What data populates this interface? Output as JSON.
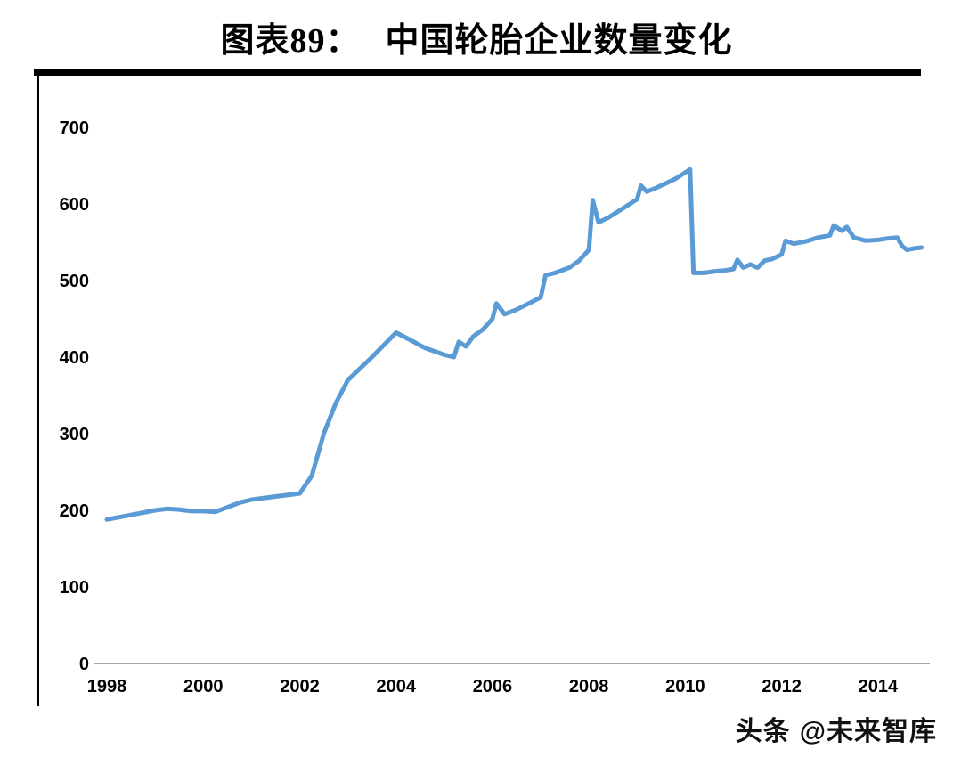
{
  "header": {
    "label": "图表89：",
    "title": "中国轮胎企业数量变化"
  },
  "watermark": {
    "prefix": "头条",
    "handle": "@未来智库"
  },
  "chart_data": {
    "type": "line",
    "title": "中国轮胎企业数量变化",
    "xlabel": "",
    "ylabel": "",
    "xlim": [
      1998,
      2015
    ],
    "ylim": [
      0,
      700
    ],
    "xticks": [
      1998,
      2000,
      2002,
      2004,
      2006,
      2008,
      2010,
      2012,
      2014
    ],
    "yticks": [
      0,
      100,
      200,
      300,
      400,
      500,
      600,
      700
    ],
    "grid": false,
    "legend": "none",
    "line_color": "#5B9BD5",
    "axis_color": "#A6A6A6",
    "series": [
      {
        "name": "中国轮胎企业数量",
        "x": [
          1998.0,
          1998.33,
          1998.67,
          1999.0,
          1999.25,
          1999.5,
          1999.75,
          2000.0,
          2000.25,
          2000.5,
          2000.75,
          2001.0,
          2001.5,
          2002.0,
          2002.25,
          2002.5,
          2002.75,
          2003.0,
          2003.5,
          2004.0,
          2004.25,
          2004.6,
          2005.0,
          2005.2,
          2005.3,
          2005.45,
          2005.6,
          2005.8,
          2006.0,
          2006.08,
          2006.25,
          2006.5,
          2006.75,
          2007.0,
          2007.1,
          2007.3,
          2007.6,
          2007.8,
          2008.0,
          2008.08,
          2008.2,
          2008.4,
          2008.6,
          2008.8,
          2009.0,
          2009.08,
          2009.2,
          2009.4,
          2009.6,
          2009.8,
          2010.0,
          2010.1,
          2010.17,
          2010.4,
          2010.6,
          2010.8,
          2011.0,
          2011.08,
          2011.2,
          2011.35,
          2011.5,
          2011.65,
          2011.8,
          2012.0,
          2012.08,
          2012.25,
          2012.5,
          2012.75,
          2013.0,
          2013.08,
          2013.25,
          2013.35,
          2013.5,
          2013.75,
          2014.0,
          2014.2,
          2014.4,
          2014.5,
          2014.6,
          2014.75,
          2014.9
        ],
        "y": [
          188,
          192,
          196,
          200,
          202,
          201,
          199,
          199,
          198,
          204,
          210,
          214,
          218,
          222,
          245,
          300,
          340,
          370,
          400,
          432,
          424,
          412,
          403,
          400,
          420,
          414,
          427,
          436,
          450,
          470,
          456,
          462,
          470,
          478,
          507,
          510,
          517,
          526,
          540,
          605,
          576,
          582,
          590,
          598,
          606,
          624,
          616,
          621,
          627,
          633,
          641,
          645,
          510,
          510,
          512,
          513,
          515,
          527,
          517,
          521,
          517,
          526,
          528,
          534,
          552,
          548,
          551,
          556,
          559,
          572,
          565,
          570,
          556,
          552,
          553,
          555,
          556,
          545,
          540,
          542,
          543
        ]
      }
    ]
  }
}
